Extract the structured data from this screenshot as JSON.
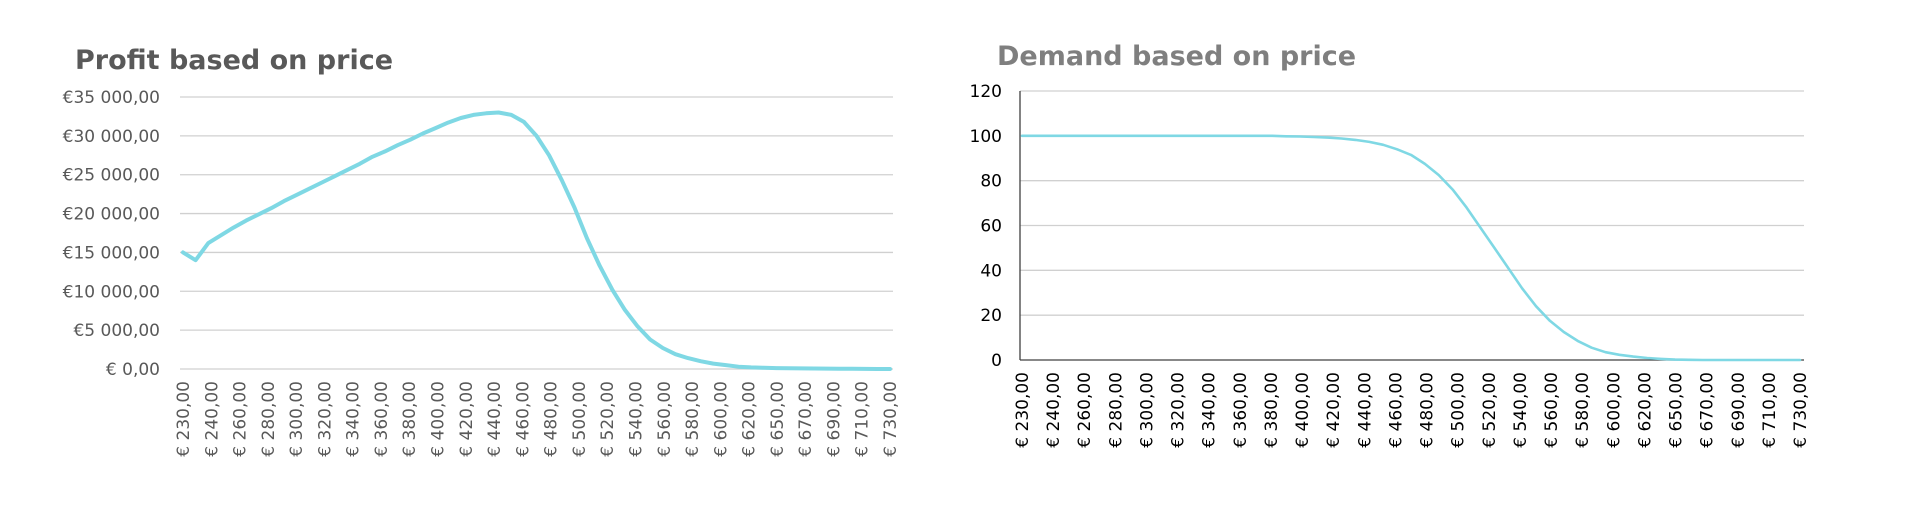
{
  "colors": {
    "line": "#7fd8e4",
    "grid": "#d0d0d0",
    "axis": "#404040",
    "profit_title": "#595959",
    "demand_title": "#7f7f7f",
    "profit_ticks": "#595959",
    "demand_ticks": "#000000"
  },
  "chart_data": [
    {
      "type": "line",
      "title": "Profit based on price",
      "xlabel": "",
      "ylabel": "",
      "x_tick_labels": [
        "€ 230,00",
        "€ 240,00",
        "€ 260,00",
        "€ 280,00",
        "€ 300,00",
        "€ 320,00",
        "€ 340,00",
        "€ 360,00",
        "€ 380,00",
        "€ 400,00",
        "€ 420,00",
        "€ 440,00",
        "€ 460,00",
        "€ 480,00",
        "€ 500,00",
        "€ 520,00",
        "€ 540,00",
        "€ 560,00",
        "€ 580,00",
        "€ 600,00",
        "€ 620,00",
        "€ 650,00",
        "€ 670,00",
        "€ 690,00",
        "€ 710,00",
        "€ 730,00"
      ],
      "y_tick_labels": [
        "€ 0,00",
        "€5 000,00",
        "€10 000,00",
        "€15 000,00",
        "€20 000,00",
        "€25 000,00",
        "€30 000,00",
        "€35 000,00"
      ],
      "y_ticks": [
        0,
        5000,
        10000,
        15000,
        20000,
        25000,
        30000,
        35000
      ],
      "ylim": [
        0,
        35000
      ],
      "grid": true,
      "legend": "none",
      "series": [
        {
          "values": [
            15000,
            14000,
            16200,
            17200,
            18200,
            19100,
            19900,
            20700,
            21600,
            22400,
            23200,
            24000,
            24800,
            25600,
            26400,
            27300,
            28000,
            28800,
            29500,
            30300,
            31000,
            31700,
            32300,
            32700,
            32900,
            33000,
            32700,
            31800,
            30000,
            27500,
            24300,
            20800,
            16800,
            13300,
            10200,
            7600,
            5500,
            3800,
            2700,
            1900,
            1400,
            1000,
            700,
            500,
            300,
            200,
            150,
            120,
            100,
            80,
            60,
            50,
            30,
            20,
            10,
            5,
            0
          ]
        }
      ]
    },
    {
      "type": "line",
      "title": "Demand based on price",
      "xlabel": "",
      "ylabel": "",
      "x_tick_labels": [
        "€ 230,00",
        "€ 240,00",
        "€ 260,00",
        "€ 280,00",
        "€ 300,00",
        "€ 320,00",
        "€ 340,00",
        "€ 360,00",
        "€ 380,00",
        "€ 400,00",
        "€ 420,00",
        "€ 440,00",
        "€ 460,00",
        "€ 480,00",
        "€ 500,00",
        "€ 520,00",
        "€ 540,00",
        "€ 560,00",
        "€ 580,00",
        "€ 600,00",
        "€ 620,00",
        "€ 650,00",
        "€ 670,00",
        "€ 690,00",
        "€ 710,00",
        "€ 730,00"
      ],
      "y_tick_labels": [
        "0",
        "20",
        "40",
        "60",
        "80",
        "100",
        "120"
      ],
      "y_ticks": [
        0,
        20,
        40,
        60,
        80,
        100,
        120
      ],
      "ylim": [
        0,
        120
      ],
      "grid": true,
      "legend": "none",
      "series": [
        {
          "values": [
            100,
            100,
            100,
            100,
            100,
            100,
            100,
            100,
            100,
            100,
            100,
            100,
            100,
            100,
            100,
            100,
            100,
            100,
            100,
            99.8,
            99.7,
            99.5,
            99.2,
            98.8,
            98.2,
            97.3,
            96,
            94,
            91.5,
            87.5,
            82.5,
            76,
            68,
            59,
            50,
            41,
            32,
            24,
            17.5,
            12.5,
            8.5,
            5.5,
            3.5,
            2.3,
            1.5,
            0.9,
            0.5,
            0.2,
            0.1,
            0,
            0,
            0,
            0,
            0,
            0,
            0,
            0
          ]
        }
      ]
    }
  ]
}
